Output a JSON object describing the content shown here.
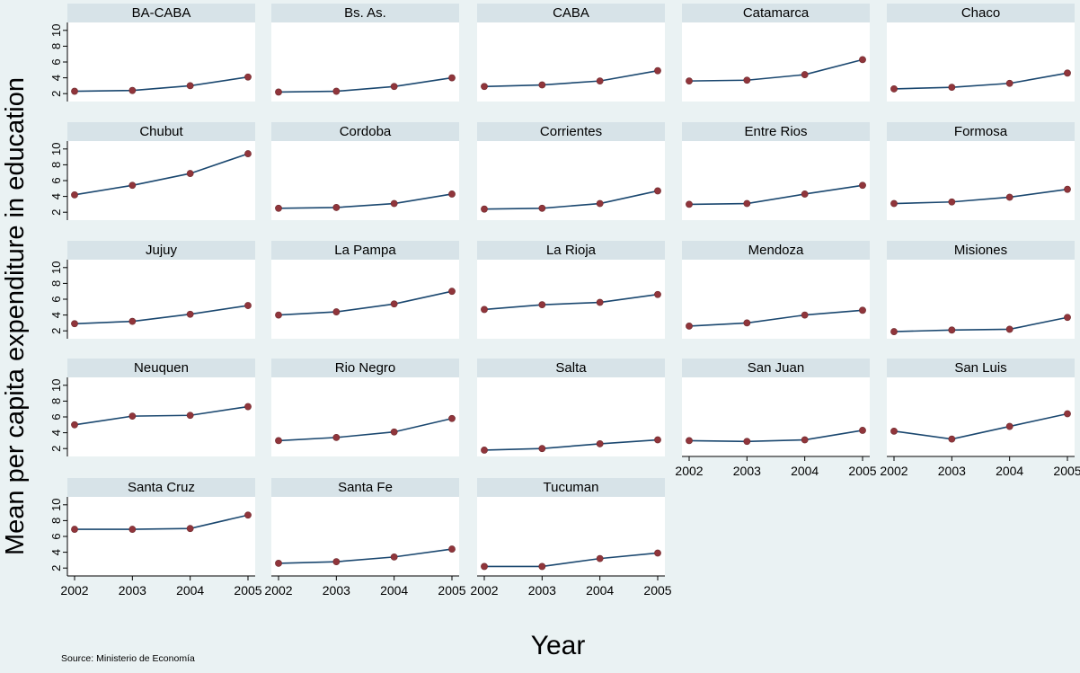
{
  "chart_data": {
    "type": "line",
    "layout": "small-multiples",
    "ylabel": "Mean per capita expenditure in education",
    "xlabel": "Year",
    "source": "Source: Ministerio de Economía",
    "x": [
      "2002",
      "2003",
      "2004",
      "2005"
    ],
    "x_ticks": [
      "2002",
      "2003",
      "2004",
      "2005"
    ],
    "y_ticks": [
      "2",
      "4",
      "6",
      "8",
      "10"
    ],
    "ylim": [
      1,
      11
    ],
    "grid": false,
    "legend": "none",
    "colors": {
      "line": "#1a476f",
      "marker": "#90353b",
      "header": "#d7e3e8",
      "plot": "#ffffff",
      "background": "#eaf2f3"
    },
    "panels": [
      {
        "name": "BA-CABA",
        "values": [
          2.3,
          2.4,
          3.0,
          4.1
        ]
      },
      {
        "name": "Bs. As.",
        "values": [
          2.2,
          2.3,
          2.9,
          4.0
        ]
      },
      {
        "name": "CABA",
        "values": [
          2.9,
          3.1,
          3.6,
          4.9
        ]
      },
      {
        "name": "Catamarca",
        "values": [
          3.6,
          3.7,
          4.4,
          6.3
        ]
      },
      {
        "name": "Chaco",
        "values": [
          2.6,
          2.8,
          3.3,
          4.6
        ]
      },
      {
        "name": "Chubut",
        "values": [
          4.2,
          5.4,
          6.9,
          9.4
        ]
      },
      {
        "name": "Cordoba",
        "values": [
          2.5,
          2.6,
          3.1,
          4.3
        ]
      },
      {
        "name": "Corrientes",
        "values": [
          2.4,
          2.5,
          3.1,
          4.7
        ]
      },
      {
        "name": "Entre Rios",
        "values": [
          3.0,
          3.1,
          4.3,
          5.4
        ]
      },
      {
        "name": "Formosa",
        "values": [
          3.1,
          3.3,
          3.9,
          4.9
        ]
      },
      {
        "name": "Jujuy",
        "values": [
          2.9,
          3.2,
          4.1,
          5.2
        ]
      },
      {
        "name": "La Pampa",
        "values": [
          4.0,
          4.4,
          5.4,
          7.0
        ]
      },
      {
        "name": "La Rioja",
        "values": [
          4.7,
          5.3,
          5.6,
          6.6
        ]
      },
      {
        "name": "Mendoza",
        "values": [
          2.6,
          3.0,
          4.0,
          4.6
        ]
      },
      {
        "name": "Misiones",
        "values": [
          1.9,
          2.1,
          2.2,
          3.7
        ]
      },
      {
        "name": "Neuquen",
        "values": [
          5.0,
          6.1,
          6.2,
          7.3
        ]
      },
      {
        "name": "Rio Negro",
        "values": [
          3.0,
          3.4,
          4.1,
          5.8
        ]
      },
      {
        "name": "Salta",
        "values": [
          1.8,
          2.0,
          2.6,
          3.1
        ]
      },
      {
        "name": "San Juan",
        "values": [
          3.0,
          2.9,
          3.1,
          4.3
        ]
      },
      {
        "name": "San Luis",
        "values": [
          4.2,
          3.2,
          4.8,
          6.4
        ]
      },
      {
        "name": "Santa Cruz",
        "values": [
          6.9,
          6.9,
          7.0,
          8.7
        ]
      },
      {
        "name": "Santa Fe",
        "values": [
          2.6,
          2.8,
          3.4,
          4.4
        ]
      },
      {
        "name": "Tucuman",
        "values": [
          2.2,
          2.2,
          3.2,
          3.9
        ]
      }
    ]
  }
}
